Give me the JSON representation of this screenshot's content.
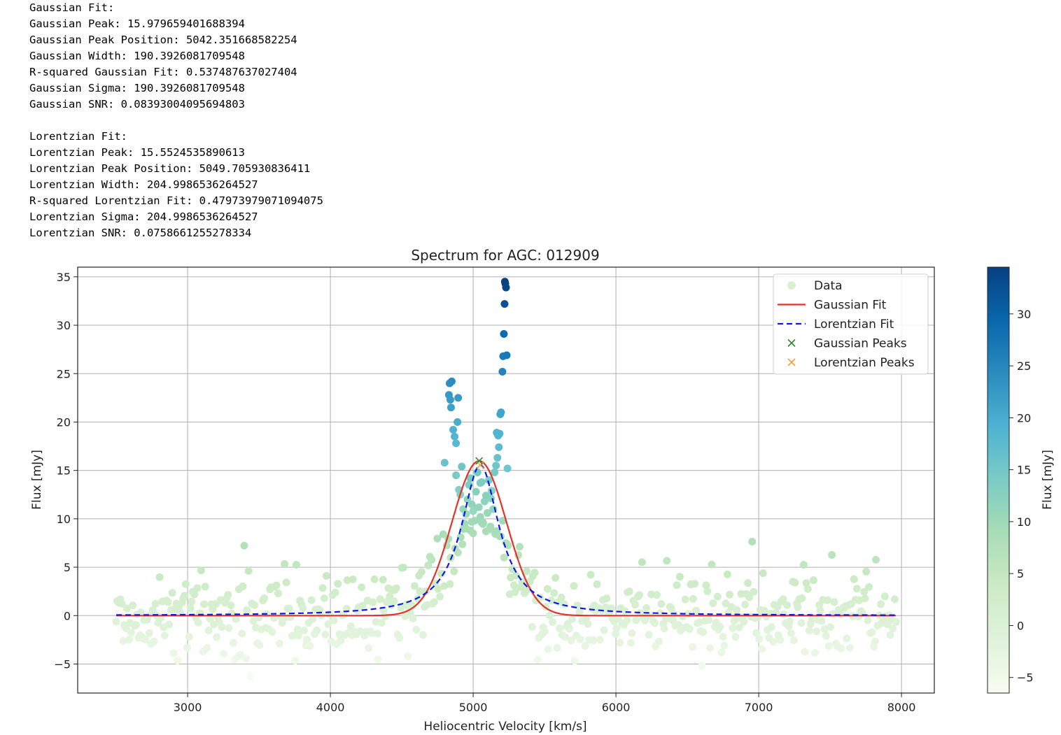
{
  "output_text": {
    "gaussian_lines": [
      "Gaussian Fit:",
      "Gaussian Peak: 15.979659401688394",
      "Gaussian Peak Position: 5042.351668582254",
      "Gaussian Width: 190.3926081709548",
      "R-squared Gaussian Fit: 0.537487637027404",
      "Gaussian Sigma: 190.3926081709548",
      "Gaussian SNR: 0.08393004095694803"
    ],
    "lorentzian_lines": [
      "Lorentzian Fit:",
      "Lorentzian Peak: 15.5524535890613",
      "Lorentzian Peak Position: 5049.705930836411",
      "Lorentzian Width: 204.9986536264527",
      "R-squared Lorentzian Fit: 0.47973979071094075",
      "Lorentzian Sigma: 204.9986536264527",
      "Lorentzian SNR: 0.0758661255278334"
    ]
  },
  "chart_data": {
    "type": "scatter",
    "title": "Spectrum for AGC: 012909",
    "xlabel": "Heliocentric Velocity [km/s]",
    "ylabel": "Flux [mJy]",
    "xlim": [
      2230,
      8230
    ],
    "ylim": [
      -8,
      36
    ],
    "xticks": [
      3000,
      4000,
      5000,
      6000,
      7000,
      8000
    ],
    "yticks": [
      -5,
      0,
      5,
      10,
      15,
      20,
      25,
      30,
      35
    ],
    "grid": true,
    "legend_position": "top-right",
    "legend": [
      {
        "label": "Data",
        "kind": "point",
        "color": "#d9efd2"
      },
      {
        "label": "Gaussian Fit",
        "kind": "line",
        "color": "#e3322b"
      },
      {
        "label": "Lorentzian Fit",
        "kind": "dashed-line",
        "color": "#0a1ae8"
      },
      {
        "label": "Gaussian Peaks",
        "kind": "x",
        "color": "#2e8b2e"
      },
      {
        "label": "Lorentzian Peaks",
        "kind": "x",
        "color": "#f5a03a"
      }
    ],
    "colorbar": {
      "label": "Flux [mJy]",
      "range": [
        -6.5,
        34.5
      ],
      "ticks": [
        -5,
        0,
        5,
        10,
        15,
        20,
        25,
        30
      ],
      "colormap": "GnBu"
    },
    "gaussian_fit": {
      "name": "Gaussian Fit",
      "amplitude": 15.979659401688394,
      "center": 5042.351668582254,
      "sigma": 190.3926081709548,
      "color": "#e3322b"
    },
    "lorentzian_fit": {
      "name": "Lorentzian Fit",
      "amplitude": 15.5524535890613,
      "center": 5049.705930836411,
      "width": 204.9986536264527,
      "color": "#0a1ae8"
    },
    "gaussian_peaks": [
      [
        5042,
        15.98
      ]
    ],
    "lorentzian_peaks": [
      [
        5050,
        15.55
      ]
    ],
    "x_range_data": [
      2500,
      7960
    ],
    "peak_points": [
      [
        4800,
        15.8
      ],
      [
        4830,
        22.8
      ],
      [
        4835,
        24.0
      ],
      [
        4840,
        22.3
      ],
      [
        4850,
        24.2
      ],
      [
        4845,
        21.5
      ],
      [
        4860,
        19.2
      ],
      [
        4870,
        18.5
      ],
      [
        4880,
        17.8
      ],
      [
        4890,
        20.0
      ],
      [
        4895,
        22.5
      ],
      [
        4880,
        14.5
      ],
      [
        4900,
        13.0
      ],
      [
        4920,
        15.4
      ],
      [
        4910,
        12.5
      ],
      [
        4930,
        11.0
      ],
      [
        4940,
        9.5
      ],
      [
        4950,
        10.5
      ],
      [
        4960,
        12.0
      ],
      [
        4970,
        13.5
      ],
      [
        4980,
        14.2
      ],
      [
        4990,
        11.5
      ],
      [
        5000,
        10.8
      ],
      [
        5010,
        9.8
      ],
      [
        5020,
        12.8
      ],
      [
        5030,
        14.8
      ],
      [
        5040,
        11.2
      ],
      [
        5050,
        10.2
      ],
      [
        5060,
        13.8
      ],
      [
        5070,
        9.6
      ],
      [
        5080,
        11.8
      ],
      [
        5090,
        12.4
      ],
      [
        5100,
        10.6
      ],
      [
        5110,
        14.0
      ],
      [
        5120,
        9.2
      ],
      [
        5130,
        12.9
      ],
      [
        5140,
        11.0
      ],
      [
        5150,
        14.8
      ],
      [
        5160,
        15.5
      ],
      [
        5165,
        18.9
      ],
      [
        5170,
        16.3
      ],
      [
        5175,
        18.6
      ],
      [
        5180,
        17.4
      ],
      [
        5185,
        18.8
      ],
      [
        5190,
        20.8
      ],
      [
        5195,
        21.0
      ],
      [
        5205,
        25.2
      ],
      [
        5210,
        26.8
      ],
      [
        5215,
        29.1
      ],
      [
        5220,
        32.2
      ],
      [
        5222,
        34.5
      ],
      [
        5225,
        34.3
      ],
      [
        5230,
        33.9
      ],
      [
        5235,
        26.9
      ],
      [
        5240,
        15.2
      ],
      [
        5230,
        7.5
      ],
      [
        4980,
        8.8
      ],
      [
        5000,
        8.5
      ],
      [
        5090,
        8.7
      ],
      [
        5125,
        8.9
      ],
      [
        4950,
        9.0
      ],
      [
        4790,
        8.4
      ]
    ]
  }
}
